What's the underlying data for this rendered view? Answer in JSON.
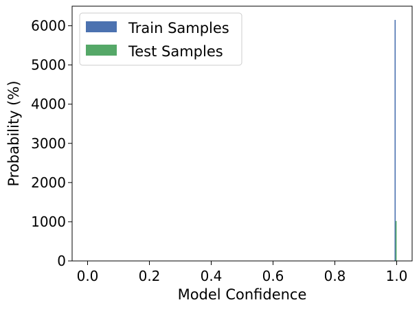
{
  "chart_data": {
    "type": "bar",
    "xlabel": "Model Confidence",
    "ylabel": "Probability (%)",
    "xlim": [
      -0.05,
      1.05
    ],
    "ylim": [
      0,
      6500
    ],
    "xticks": [
      "0.0",
      "0.2",
      "0.4",
      "0.6",
      "0.8",
      "1.0"
    ],
    "yticks": [
      "0",
      "1000",
      "2000",
      "3000",
      "4000",
      "5000",
      "6000"
    ],
    "legend_position": "top-left",
    "grid": false,
    "series": [
      {
        "name": "Train Samples",
        "color": "#4c72b0",
        "bins": [
          {
            "x": 0.995,
            "value": 6150
          }
        ]
      },
      {
        "name": "Test Samples",
        "color": "#55a868",
        "bins": [
          {
            "x": 0.998,
            "value": 1020
          }
        ]
      }
    ]
  }
}
